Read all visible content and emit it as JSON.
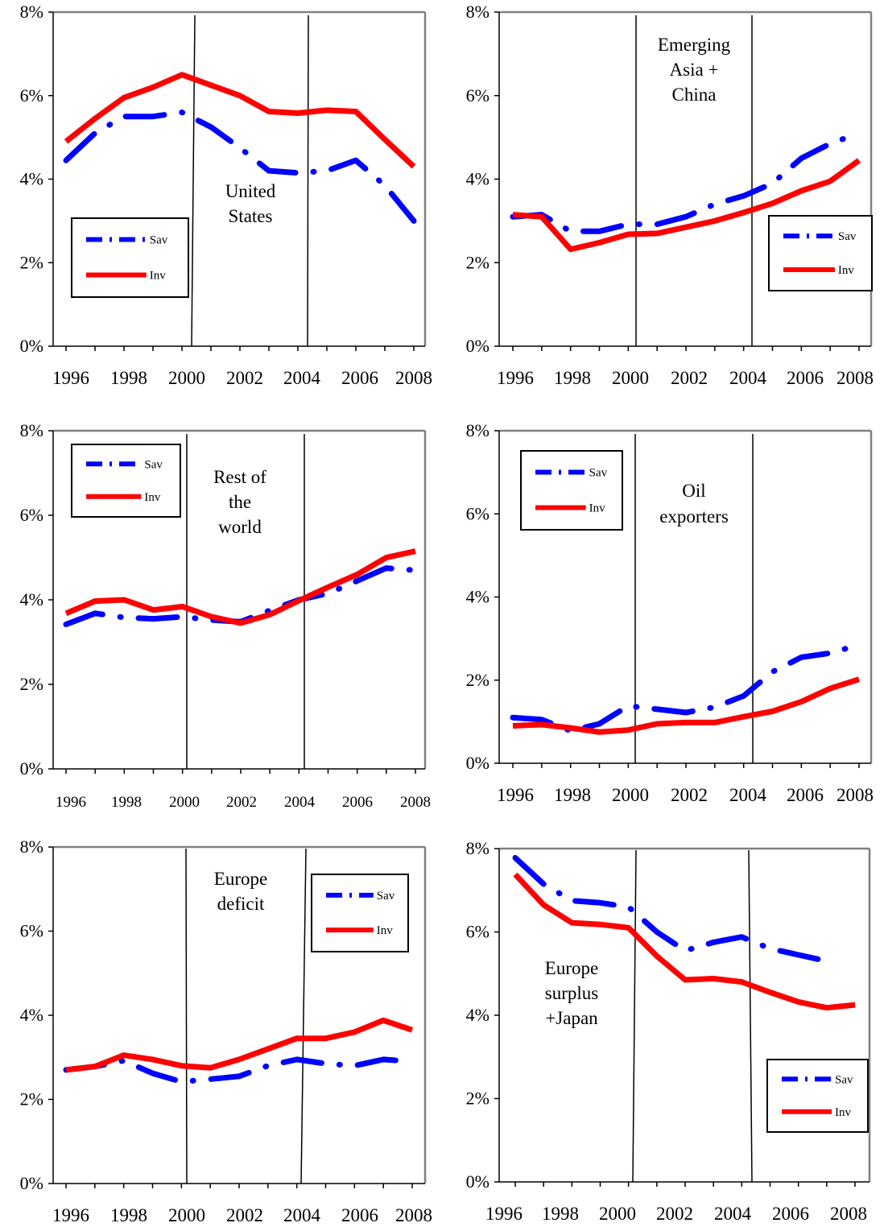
{
  "chart_data": [
    {
      "type": "line",
      "x": [
        1996,
        1997,
        1998,
        1999,
        2000,
        2001,
        2002,
        2003,
        2004,
        2005,
        2006,
        2007,
        2008
      ],
      "xticks": [
        "1996",
        "1998",
        "2000",
        "2002",
        "2004",
        "2006",
        "2008"
      ],
      "yticks": [
        "0%",
        "2%",
        "4%",
        "6%",
        "8%"
      ],
      "ylim": [
        0,
        8
      ],
      "annotation": [
        "United",
        "States"
      ],
      "vlines": [
        2000,
        2004
      ],
      "legend": "left-middle",
      "series": [
        {
          "name": "Sav",
          "style": "dash-dot",
          "color": "#0000ff",
          "values": [
            4.45,
            5.1,
            5.5,
            5.5,
            5.6,
            5.25,
            4.75,
            4.2,
            4.15,
            4.2,
            4.45,
            3.85,
            3.0
          ]
        },
        {
          "name": "Inv",
          "style": "solid",
          "color": "#ff0000",
          "values": [
            4.9,
            5.45,
            5.95,
            6.2,
            6.5,
            6.25,
            6.0,
            5.62,
            5.58,
            5.65,
            5.62,
            4.95,
            4.3
          ]
        }
      ]
    },
    {
      "type": "line",
      "x": [
        1996,
        1997,
        1998,
        1999,
        2000,
        2001,
        2002,
        2003,
        2004,
        2005,
        2006,
        2007,
        2008
      ],
      "xticks": [
        "1996",
        "1998",
        "2000",
        "2002",
        "2004",
        "2006",
        "2008"
      ],
      "yticks": [
        "0%",
        "2%",
        "4%",
        "6%",
        "8%"
      ],
      "ylim": [
        0,
        8
      ],
      "annotation": [
        "Emerging",
        "Asia +",
        "China"
      ],
      "vlines": [
        2000,
        2004
      ],
      "legend": "right-middle",
      "series": [
        {
          "name": "Sav",
          "style": "dash-dot",
          "color": "#0000ff",
          "values": [
            3.1,
            3.15,
            2.75,
            2.75,
            2.92,
            2.92,
            3.1,
            3.4,
            3.6,
            3.9,
            4.5,
            4.85,
            5.1
          ]
        },
        {
          "name": "Inv",
          "style": "solid",
          "color": "#ff0000",
          "values": [
            3.15,
            3.1,
            2.32,
            2.48,
            2.68,
            2.7,
            2.85,
            3.0,
            3.2,
            3.42,
            3.72,
            3.95,
            4.45
          ]
        }
      ]
    },
    {
      "type": "line",
      "x": [
        1996,
        1997,
        1998,
        1999,
        2000,
        2001,
        2002,
        2003,
        2004,
        2005,
        2006,
        2007,
        2008
      ],
      "xticks": [
        "1996",
        "1998",
        "2000",
        "2002",
        "2004",
        "2006",
        "2008"
      ],
      "yticks": [
        "0%",
        "2%",
        "4%",
        "6%",
        "8%"
      ],
      "ylim": [
        0,
        8
      ],
      "annotation": [
        "Rest of",
        "the",
        "world"
      ],
      "vlines": [
        2000,
        2004
      ],
      "legend": "top-left",
      "series": [
        {
          "name": "Sav",
          "style": "dash-dot",
          "color": "#0000ff",
          "values": [
            3.42,
            3.68,
            3.58,
            3.55,
            3.6,
            3.52,
            3.48,
            3.75,
            4.0,
            4.15,
            4.45,
            4.75,
            4.7
          ]
        },
        {
          "name": "Inv",
          "style": "solid",
          "color": "#ff0000",
          "values": [
            3.68,
            3.97,
            4.0,
            3.76,
            3.84,
            3.6,
            3.45,
            3.65,
            3.98,
            4.3,
            4.6,
            5.0,
            5.15
          ]
        }
      ]
    },
    {
      "type": "line",
      "x": [
        1996,
        1997,
        1998,
        1999,
        2000,
        2001,
        2002,
        2003,
        2004,
        2005,
        2006,
        2007,
        2008
      ],
      "xticks": [
        "1996",
        "1998",
        "2000",
        "2002",
        "2004",
        "2006",
        "2008"
      ],
      "yticks": [
        "0%",
        "2%",
        "4%",
        "6%",
        "8%"
      ],
      "ylim": [
        0,
        8
      ],
      "annotation": [
        "Oil",
        "exporters"
      ],
      "vlines": [
        2000,
        2004
      ],
      "legend": "top-left",
      "series": [
        {
          "name": "Sav",
          "style": "dash-dot",
          "color": "#0000ff",
          "values": [
            1.1,
            1.05,
            0.78,
            0.95,
            1.38,
            1.3,
            1.22,
            1.35,
            1.62,
            2.2,
            2.55,
            2.65,
            2.85
          ]
        },
        {
          "name": "Inv",
          "style": "solid",
          "color": "#ff0000",
          "values": [
            0.9,
            0.93,
            0.85,
            0.75,
            0.8,
            0.95,
            0.98,
            0.98,
            1.12,
            1.25,
            1.48,
            1.8,
            2.02
          ]
        }
      ]
    },
    {
      "type": "line",
      "x": [
        1996,
        1997,
        1998,
        1999,
        2000,
        2001,
        2002,
        2003,
        2004,
        2005,
        2006,
        2007,
        2008
      ],
      "xticks": [
        "1996",
        "1998",
        "2000",
        "2002",
        "2004",
        "2006",
        "2008"
      ],
      "yticks": [
        "0%",
        "2%",
        "4%",
        "6%",
        "8%"
      ],
      "ylim": [
        0,
        8
      ],
      "annotation": [
        "Europe",
        "deficit"
      ],
      "vlines": [
        2000,
        2004
      ],
      "legend": "top-right",
      "series": [
        {
          "name": "Sav",
          "style": "dash-dot",
          "color": "#0000ff",
          "values": [
            2.7,
            2.78,
            2.92,
            2.62,
            2.42,
            2.48,
            2.55,
            2.8,
            2.95,
            2.85,
            2.8,
            2.95,
            2.9
          ]
        },
        {
          "name": "Inv",
          "style": "solid",
          "color": "#ff0000",
          "values": [
            2.7,
            2.78,
            3.05,
            2.95,
            2.8,
            2.75,
            2.95,
            3.2,
            3.45,
            3.45,
            3.6,
            3.88,
            3.65
          ]
        }
      ]
    },
    {
      "type": "line",
      "x": [
        1996,
        1997,
        1998,
        1999,
        2000,
        2001,
        2002,
        2003,
        2004,
        2005,
        2006,
        2007,
        2008
      ],
      "xticks": [
        "1996",
        "1998",
        "2000",
        "2002",
        "2004",
        "2006",
        "2008"
      ],
      "yticks": [
        "0%",
        "2%",
        "4%",
        "6%",
        "8%"
      ],
      "ylim": [
        0,
        8
      ],
      "annotation": [
        "Europe",
        "surplus",
        "+Japan"
      ],
      "vlines": [
        2000,
        2004
      ],
      "legend": "right-bottom",
      "series": [
        {
          "name": "Sav",
          "style": "dash-dot",
          "color": "#0000ff",
          "values": [
            7.78,
            7.15,
            6.75,
            6.7,
            6.6,
            6.0,
            5.55,
            5.75,
            5.88,
            5.6,
            5.45,
            5.3,
            null
          ]
        },
        {
          "name": "Inv",
          "style": "solid",
          "color": "#ff0000",
          "values": [
            7.38,
            6.65,
            6.22,
            6.18,
            6.1,
            5.42,
            4.85,
            4.88,
            4.8,
            4.55,
            4.32,
            4.18,
            4.25
          ]
        }
      ]
    }
  ]
}
